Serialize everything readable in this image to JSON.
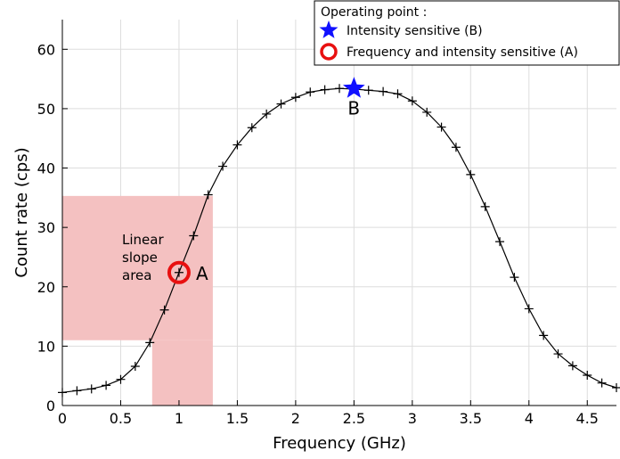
{
  "chart_data": {
    "type": "line",
    "xlabel": "Frequency (GHz)",
    "ylabel": "Count rate (cps)",
    "xlim": [
      0,
      4.75
    ],
    "ylim": [
      0,
      65
    ],
    "x_ticks": [
      0,
      0.5,
      1,
      1.5,
      2,
      2.5,
      3,
      3.5,
      4,
      4.5
    ],
    "x_tick_labels": [
      "0",
      "0.5",
      "1",
      "1.5",
      "2",
      "2.5",
      "3",
      "3.5",
      "4",
      "4.5"
    ],
    "y_ticks": [
      0,
      10,
      20,
      30,
      40,
      50,
      60
    ],
    "y_tick_labels": [
      "0",
      "10",
      "20",
      "30",
      "40",
      "50",
      "60"
    ],
    "grid": true,
    "series": [
      {
        "x": [
          0,
          0.125,
          0.25,
          0.375,
          0.5,
          0.625,
          0.75,
          0.875,
          1.0,
          1.125,
          1.25,
          1.375,
          1.5,
          1.625,
          1.75,
          1.875,
          2.0,
          2.125,
          2.25,
          2.375,
          2.5,
          2.625,
          2.75,
          2.875,
          3.0,
          3.125,
          3.25,
          3.375,
          3.5,
          3.625,
          3.75,
          3.875,
          4.0,
          4.125,
          4.25,
          4.375,
          4.5,
          4.625,
          4.75
        ],
        "y": [
          2.2,
          2.5,
          2.8,
          3.4,
          4.4,
          6.6,
          10.6,
          16.1,
          22.4,
          28.6,
          35.5,
          40.3,
          43.9,
          46.8,
          49.1,
          50.8,
          51.9,
          52.8,
          53.2,
          53.4,
          53.3,
          53.1,
          52.9,
          52.5,
          51.3,
          49.4,
          46.9,
          43.5,
          38.9,
          33.5,
          27.6,
          21.6,
          16.3,
          11.8,
          8.7,
          6.7,
          5.1,
          3.8,
          3.0
        ]
      }
    ],
    "shaded_regions": [
      {
        "x": [
          0,
          1.29
        ],
        "y": [
          11,
          35.3
        ]
      },
      {
        "x": [
          0.77,
          1.29
        ],
        "y": [
          0,
          11
        ]
      }
    ],
    "markers": [
      {
        "shape": "star",
        "x": 2.5,
        "y": 53.4,
        "color": "#1010ff"
      },
      {
        "shape": "circle",
        "x": 1.0,
        "y": 22.4,
        "color": "#e81010"
      }
    ],
    "annotations": {
      "point_a": "A",
      "point_b": "B",
      "region_line1": "Linear",
      "region_line2": "slope",
      "region_line3": "area"
    },
    "legend": {
      "placement": "top-right",
      "title": "Operating point :",
      "entries": [
        {
          "label": "Intensity sensitive (B)",
          "marker": "star",
          "color": "#1010ff"
        },
        {
          "label": "Frequency and intensity sensitive (A)",
          "marker": "circle",
          "color": "#e81010"
        }
      ]
    },
    "colors": {
      "line": "#000000",
      "shade": "#f4c1c1",
      "grid": "#dddddd"
    }
  }
}
